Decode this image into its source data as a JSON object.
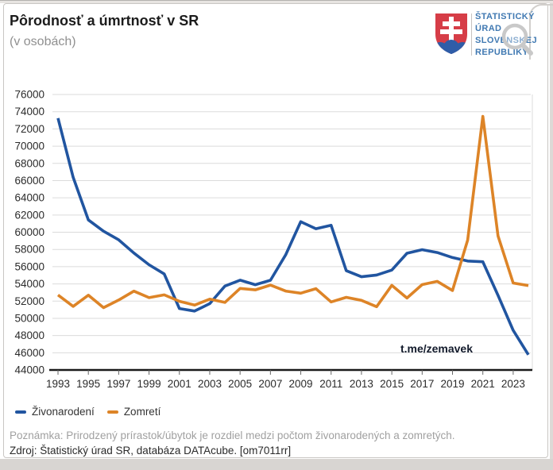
{
  "header": {
    "title": "Pôrodnosť a úmrtnosť v SR",
    "subtitle": "(v osobách)",
    "logo": {
      "lines": [
        "ŠTATISTICKÝ",
        "ÚRAD",
        "SLOVENSKEJ",
        "REPUBLIKY"
      ],
      "color": "#4079b2"
    }
  },
  "watermark": "t.me/zemavek",
  "footer": {
    "note": "Poznámka: Prirodzený prírastok/úbytok je rozdiel medzi počtom živonarodených a zomretých.",
    "source": "Zdroj: Štatistický úrad SR, databáza DATAcube. [om7011rr]"
  },
  "chart_data": {
    "type": "line",
    "title": "Pôrodnosť a úmrtnosť v SR (v osobách)",
    "x": [
      1993,
      1994,
      1995,
      1996,
      1997,
      1998,
      1999,
      2000,
      2001,
      2002,
      2003,
      2004,
      2005,
      2006,
      2007,
      2008,
      2009,
      2010,
      2011,
      2012,
      2013,
      2014,
      2015,
      2016,
      2017,
      2018,
      2019,
      2020,
      2021,
      2022,
      2023,
      2024
    ],
    "series": [
      {
        "name": "Živonarodení",
        "color": "#2155a0",
        "values": [
          73256,
          66370,
          61427,
          60123,
          59111,
          57582,
          56223,
          55151,
          51136,
          50841,
          51713,
          53747,
          54430,
          53904,
          54424,
          57360,
          61217,
          60410,
          60813,
          55535,
          54823,
          55033,
          55602,
          57557,
          57969,
          57639,
          57054,
          56650,
          56565,
          52668,
          48598,
          45766
        ]
      },
      {
        "name": "Zomretí",
        "color": "#dd8427",
        "values": [
          52707,
          51386,
          52686,
          51236,
          52124,
          53156,
          52402,
          52724,
          51980,
          51532,
          52230,
          51852,
          53475,
          53301,
          53856,
          53164,
          52913,
          53445,
          51903,
          52437,
          52089,
          51346,
          53826,
          52351,
          53914,
          54293,
          53234,
          59089,
          73461,
          59565,
          54100,
          53800
        ]
      }
    ],
    "ylim": [
      44000,
      76000
    ],
    "ytick_step": 2000,
    "xtick_years": [
      1993,
      1995,
      1997,
      1999,
      2001,
      2003,
      2005,
      2007,
      2009,
      2011,
      2013,
      2015,
      2017,
      2019,
      2021,
      2023
    ],
    "grid": true,
    "legend_position": "bottom-left",
    "colors": {
      "grid": "#dbdbdb",
      "axis": "#1a1a1a"
    }
  }
}
